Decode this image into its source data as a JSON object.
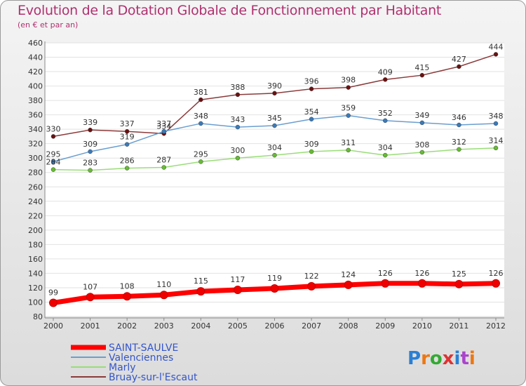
{
  "chart_data": {
    "type": "line",
    "title": "Evolution de la Dotation Globale de Fonctionnement par Habitant",
    "subtitle": "(en € et par an)",
    "xlabel": "",
    "ylabel": "",
    "x": [
      "2000",
      "2001",
      "2002",
      "2003",
      "2004",
      "2005",
      "2006",
      "2007",
      "2008",
      "2009",
      "2010",
      "2011",
      "2012"
    ],
    "ylim": [
      80,
      460
    ],
    "ytick_step": 20,
    "legend_position": "bottom-left",
    "series": [
      {
        "name": "Bruay-sur-l'Escaut",
        "color": "#8b3a3a",
        "marker": "#6a1010",
        "thick": false,
        "values": [
          330,
          339,
          337,
          334,
          381,
          388,
          390,
          396,
          398,
          409,
          415,
          427,
          444
        ]
      },
      {
        "name": "Valenciennes",
        "color": "#6a9ed0",
        "marker": "#3a7ab8",
        "thick": false,
        "values": [
          295,
          309,
          319,
          337,
          348,
          343,
          345,
          354,
          359,
          352,
          349,
          346,
          348
        ]
      },
      {
        "name": "Marly",
        "color": "#99dd77",
        "marker": "#66bb33",
        "thick": false,
        "values": [
          284,
          283,
          286,
          287,
          295,
          300,
          304,
          309,
          311,
          304,
          308,
          312,
          314
        ]
      },
      {
        "name": "SAINT-SAULVE",
        "color": "#ff0000",
        "marker": "#ee0000",
        "thick": true,
        "values": [
          99,
          107,
          108,
          110,
          115,
          117,
          119,
          122,
          124,
          126,
          126,
          125,
          126
        ]
      }
    ],
    "legend_order": [
      "SAINT-SAULVE",
      "Valenciennes",
      "Marly",
      "Bruay-sur-l'Escaut"
    ]
  },
  "logo": {
    "text": "Proxiti"
  }
}
